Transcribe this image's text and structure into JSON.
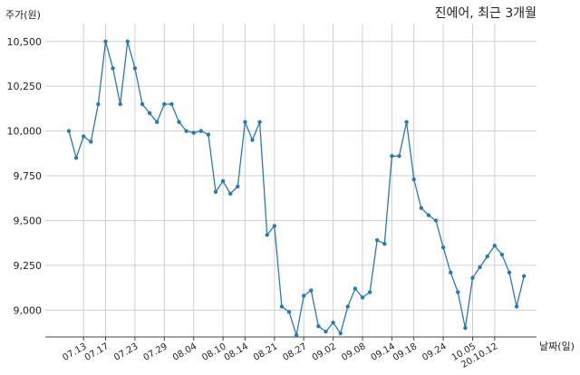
{
  "chart_data": {
    "type": "line",
    "title": "진에어, 최근 3개월",
    "ylabel": "주가(원)",
    "xlabel": "날짜(일)",
    "ylim": [
      8850,
      10600
    ],
    "yticks": [
      9000,
      9250,
      9500,
      9750,
      10000,
      10250,
      10500
    ],
    "ytick_labels": [
      "9,000",
      "9,250",
      "9,500",
      "9,750",
      "10,000",
      "10,250",
      "10,500"
    ],
    "xtick_labels": [
      "07.13",
      "07.17",
      "07.23",
      "07.29",
      "08.04",
      "08.10",
      "08.14",
      "08.21",
      "08.27",
      "09.02",
      "09.08",
      "09.14",
      "09.18",
      "09.24",
      "10.05",
      "20.10.12"
    ],
    "xtick_positions": [
      2,
      5,
      9,
      13,
      17,
      21,
      24,
      28,
      32,
      36,
      40,
      44,
      47,
      51,
      55,
      58
    ],
    "grid": true,
    "color": "#2a7ab0",
    "series": [
      {
        "values": [
          10000,
          9850,
          9970,
          9940,
          10150,
          10500,
          10350,
          10150,
          10500,
          10350,
          10150,
          10100,
          10050,
          10150,
          10150,
          10050,
          10000,
          9990,
          10000,
          9980,
          9660,
          9720,
          9650,
          9690,
          10050,
          9950,
          10050,
          9420,
          9470,
          9020,
          8990,
          8860,
          9080,
          9110,
          8910,
          8880,
          8930,
          8870,
          9020,
          9120,
          9070,
          9100,
          9390,
          9370,
          9860,
          9860,
          10050,
          9730,
          9570,
          9530,
          9500,
          9350,
          9210,
          9100,
          8900,
          9180,
          9240,
          9300,
          9360,
          9310,
          9210,
          9020,
          9190
        ]
      }
    ]
  }
}
